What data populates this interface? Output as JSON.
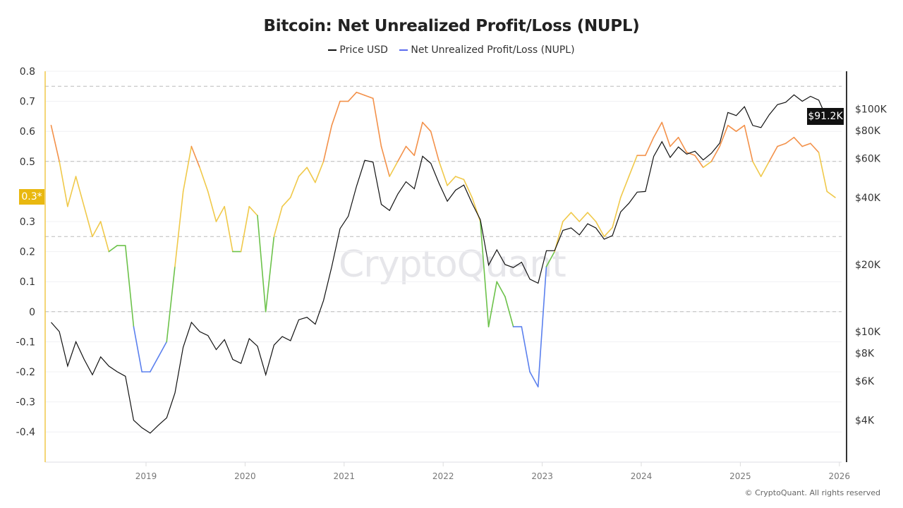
{
  "chart_data": {
    "type": "line",
    "title": "Bitcoin: Net Unrealized Profit/Loss (NUPL)",
    "legend_position": "top",
    "grid": true,
    "x": [
      "2018-01",
      "2018-02",
      "2018-03",
      "2018-04",
      "2018-05",
      "2018-06",
      "2018-07",
      "2018-08",
      "2018-09",
      "2018-10",
      "2018-11",
      "2018-12",
      "2019-01",
      "2019-02",
      "2019-03",
      "2019-04",
      "2019-05",
      "2019-06",
      "2019-07",
      "2019-08",
      "2019-09",
      "2019-10",
      "2019-11",
      "2019-12",
      "2020-01",
      "2020-02",
      "2020-03",
      "2020-04",
      "2020-05",
      "2020-06",
      "2020-07",
      "2020-08",
      "2020-09",
      "2020-10",
      "2020-11",
      "2020-12",
      "2021-01",
      "2021-02",
      "2021-03",
      "2021-04",
      "2021-05",
      "2021-06",
      "2021-07",
      "2021-08",
      "2021-09",
      "2021-10",
      "2021-11",
      "2021-12",
      "2022-01",
      "2022-02",
      "2022-03",
      "2022-04",
      "2022-05",
      "2022-06",
      "2022-07",
      "2022-08",
      "2022-09",
      "2022-10",
      "2022-11",
      "2022-12",
      "2023-01",
      "2023-02",
      "2023-03",
      "2023-04",
      "2023-05",
      "2023-06",
      "2023-07",
      "2023-08",
      "2023-09",
      "2023-10",
      "2023-11",
      "2023-12",
      "2024-01",
      "2024-02",
      "2024-03",
      "2024-04",
      "2024-05",
      "2024-06",
      "2024-07",
      "2024-08",
      "2024-09",
      "2024-10",
      "2024-11",
      "2024-12",
      "2025-01",
      "2025-02",
      "2025-03",
      "2025-04",
      "2025-05",
      "2025-06",
      "2025-07",
      "2025-08",
      "2025-09",
      "2025-10",
      "2025-11",
      "2025-12"
    ],
    "x_ticks": [
      "2019",
      "2020",
      "2021",
      "2022",
      "2023",
      "2024",
      "2025",
      "2026"
    ],
    "series": [
      {
        "name": "Price USD",
        "axis": "right",
        "color": "#111111",
        "values": [
          11000,
          10000,
          7000,
          9000,
          7500,
          6400,
          7700,
          7000,
          6600,
          6300,
          4000,
          3700,
          3500,
          3800,
          4100,
          5300,
          8500,
          11000,
          10000,
          9600,
          8300,
          9200,
          7500,
          7200,
          9300,
          8600,
          6400,
          8700,
          9500,
          9100,
          11300,
          11600,
          10800,
          13800,
          19600,
          29000,
          33000,
          45000,
          58800,
          57700,
          37300,
          35000,
          41500,
          47100,
          43800,
          61300,
          57000,
          46300,
          38500,
          43200,
          45500,
          37700,
          31800,
          19900,
          23300,
          20000,
          19400,
          20500,
          17200,
          16500,
          23100,
          23100,
          28500,
          29200,
          27200,
          30500,
          29200,
          26000,
          27000,
          34500,
          37700,
          42300,
          42600,
          61200,
          71300,
          60600,
          67500,
          62700,
          64600,
          59000,
          63300,
          70200,
          96400,
          93400,
          102400,
          84300,
          82500,
          94200,
          104600,
          107100,
          115700,
          108300,
          114000,
          109500,
          90400,
          91200
        ]
      },
      {
        "name": "Net Unrealized Profit/Loss (NUPL)",
        "axis": "left",
        "values": [
          0.62,
          0.5,
          0.35,
          0.45,
          0.35,
          0.25,
          0.3,
          0.2,
          0.22,
          0.22,
          -0.05,
          -0.2,
          -0.2,
          -0.15,
          -0.1,
          0.15,
          0.4,
          0.55,
          0.48,
          0.4,
          0.3,
          0.35,
          0.2,
          0.2,
          0.35,
          0.32,
          0.0,
          0.25,
          0.35,
          0.38,
          0.45,
          0.48,
          0.43,
          0.5,
          0.62,
          0.7,
          0.7,
          0.73,
          0.72,
          0.71,
          0.55,
          0.45,
          0.5,
          0.55,
          0.52,
          0.63,
          0.6,
          0.5,
          0.42,
          0.45,
          0.44,
          0.38,
          0.3,
          -0.05,
          0.1,
          0.05,
          -0.05,
          -0.05,
          -0.2,
          -0.25,
          0.15,
          0.2,
          0.3,
          0.33,
          0.3,
          0.33,
          0.3,
          0.25,
          0.28,
          0.38,
          0.45,
          0.52,
          0.52,
          0.58,
          0.63,
          0.55,
          0.58,
          0.53,
          0.52,
          0.48,
          0.5,
          0.55,
          0.62,
          0.6,
          0.62,
          0.5,
          0.45,
          0.5,
          0.55,
          0.56,
          0.58,
          0.55,
          0.56,
          0.53,
          0.4,
          0.38
        ]
      }
    ],
    "zone_colors": {
      "below_0": "#5b80ee",
      "0_to_0.25": "#6cc24a",
      "0.25_to_0.5": "#f0c94a",
      "0.5_to_0.75": "#f3914a",
      "above_0.75": "#e5484d"
    },
    "left_axis": {
      "ticks": [
        "0.8",
        "0.7",
        "0.6",
        "0.5",
        "0.3",
        "0.2",
        "0.1",
        "0",
        "-0.1",
        "-0.2",
        "-0.3",
        "-0.4"
      ],
      "range": [
        -0.45,
        0.8
      ],
      "current_label": "0.3*"
    },
    "right_axis": {
      "scale": "log",
      "ticks": [
        "$100K",
        "$80K",
        "$60K",
        "$40K",
        "$20K",
        "$10K",
        "$8K",
        "$6K",
        "$4K"
      ],
      "current_label": "$91.2K"
    },
    "reference_lines": [
      0.75,
      0.5,
      0.25,
      0
    ]
  },
  "legend": {
    "price": "Price USD",
    "nupl": "Net Unrealized Profit/Loss (NUPL)"
  },
  "watermark": "CryptoQuant",
  "footer": "© CryptoQuant. All rights reserved"
}
